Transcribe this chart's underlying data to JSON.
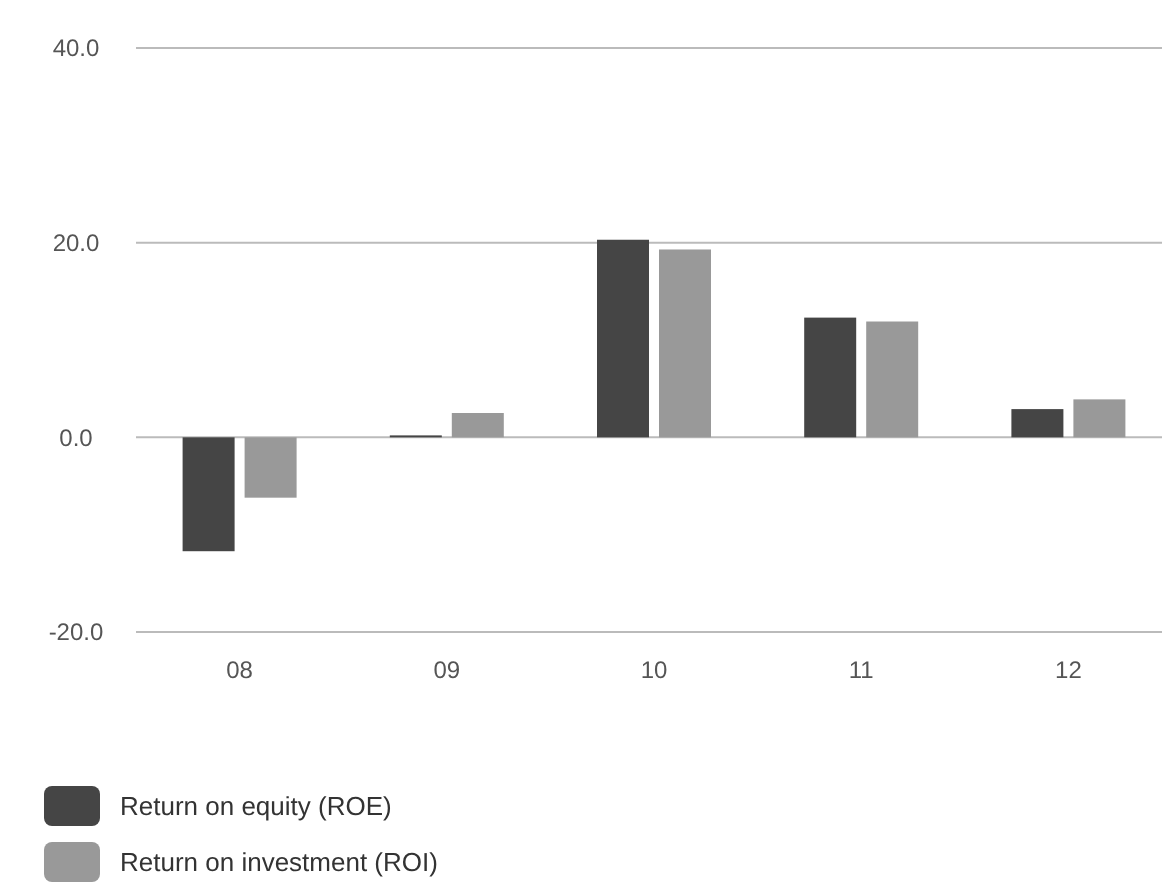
{
  "chart_data": {
    "type": "bar",
    "categories": [
      "08",
      "09",
      "10",
      "11",
      "12"
    ],
    "series": [
      {
        "name": "Return on equity (ROE)",
        "color": "#454545",
        "values": [
          -11.7,
          0.2,
          20.3,
          12.3,
          2.9
        ]
      },
      {
        "name": "Return on investment (ROI)",
        "color": "#999999",
        "values": [
          -6.2,
          2.5,
          19.3,
          11.9,
          3.9
        ]
      }
    ],
    "ylim": [
      -20,
      40
    ],
    "yticks": [
      {
        "value": -20,
        "label": "-20.0"
      },
      {
        "value": 0,
        "label": "0.0"
      },
      {
        "value": 20,
        "label": "20.0"
      },
      {
        "value": 40,
        "label": "40.0"
      }
    ],
    "grid": "y",
    "legend": "bottom left"
  }
}
